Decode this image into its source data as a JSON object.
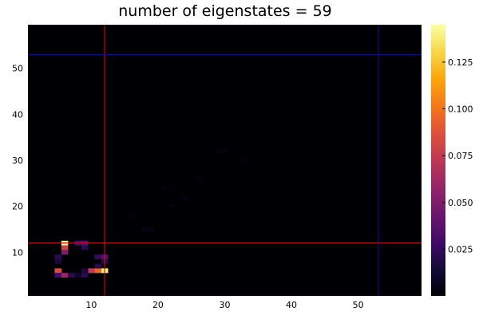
{
  "chart_data": {
    "type": "heatmap",
    "title": "number of eigenstates = 59",
    "xlabel": "",
    "ylabel": "",
    "xlim": [
      0.5,
      59.5
    ],
    "ylim": [
      0.5,
      59.5
    ],
    "x_ticks": [
      "10",
      "20",
      "30",
      "40",
      "50"
    ],
    "y_ticks": [
      "10",
      "20",
      "30",
      "40",
      "50"
    ],
    "grid": false,
    "colormap": "inferno",
    "background_color": "#000004",
    "color_range": [
      0,
      0.145
    ],
    "colorbar_ticks": [
      "0.025",
      "0.050",
      "0.075",
      "0.100",
      "0.125"
    ],
    "highlighted_cells": [
      {
        "x": 6,
        "y": 12,
        "value": 0.145
      },
      {
        "x": 6,
        "y": 11,
        "value": 0.08
      },
      {
        "x": 6,
        "y": 10,
        "value": 0.05
      },
      {
        "x": 8,
        "y": 12,
        "value": 0.03
      },
      {
        "x": 9,
        "y": 12,
        "value": 0.035
      },
      {
        "x": 9,
        "y": 11,
        "value": 0.02
      },
      {
        "x": 5,
        "y": 9,
        "value": 0.02
      },
      {
        "x": 5,
        "y": 8,
        "value": 0.015
      },
      {
        "x": 11,
        "y": 9,
        "value": 0.025
      },
      {
        "x": 12,
        "y": 9,
        "value": 0.035
      },
      {
        "x": 12,
        "y": 8,
        "value": 0.02
      },
      {
        "x": 5,
        "y": 6,
        "value": 0.085
      },
      {
        "x": 5,
        "y": 5,
        "value": 0.03
      },
      {
        "x": 6,
        "y": 5,
        "value": 0.06
      },
      {
        "x": 7,
        "y": 5,
        "value": 0.02
      },
      {
        "x": 8,
        "y": 5,
        "value": 0.01
      },
      {
        "x": 9,
        "y": 5,
        "value": 0.02
      },
      {
        "x": 10,
        "y": 6,
        "value": 0.075
      },
      {
        "x": 11,
        "y": 6,
        "value": 0.095
      },
      {
        "x": 12,
        "y": 6,
        "value": 0.14
      },
      {
        "x": 11,
        "y": 7,
        "value": 0.02
      },
      {
        "x": 9,
        "y": 6,
        "value": 0.015
      }
    ],
    "faint_cells": [
      {
        "x": 18,
        "y": 15,
        "value": 0.004
      },
      {
        "x": 19,
        "y": 15,
        "value": 0.004
      },
      {
        "x": 16,
        "y": 18,
        "value": 0.003
      },
      {
        "x": 22,
        "y": 20,
        "value": 0.003
      },
      {
        "x": 21,
        "y": 24,
        "value": 0.003
      },
      {
        "x": 24,
        "y": 22,
        "value": 0.003
      },
      {
        "x": 26,
        "y": 26,
        "value": 0.003
      },
      {
        "x": 29,
        "y": 32,
        "value": 0.003
      },
      {
        "x": 30,
        "y": 32,
        "value": 0.003
      },
      {
        "x": 33,
        "y": 30,
        "value": 0.003
      }
    ],
    "reference_lines": [
      {
        "orientation": "vertical",
        "value": 12,
        "color": "#e00000"
      },
      {
        "orientation": "horizontal",
        "value": 12,
        "color": "#e00000"
      },
      {
        "orientation": "vertical",
        "value": 53,
        "color": "#0000d0"
      },
      {
        "orientation": "horizontal",
        "value": 53,
        "color": "#0000d0"
      }
    ]
  }
}
